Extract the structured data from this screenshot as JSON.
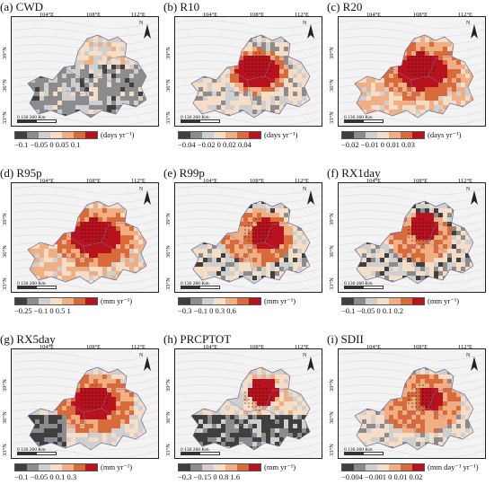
{
  "lon_labels": [
    "104°E",
    "108°E",
    "112°E"
  ],
  "lat_labels": [
    "39°N",
    "36°N",
    "33°N"
  ],
  "scale_label": "0   130   260 Km",
  "north_label": "N",
  "colors": {
    "c0": "#3f3f3f",
    "c1": "#8c8c8c",
    "c2": "#cfcfcf",
    "c3": "#f6ddc6",
    "c4": "#efae84",
    "c5": "#d96a3a",
    "c6": "#b8121f",
    "land": "#eeeeee"
  },
  "panels": [
    {
      "title": "(a) CWD",
      "unit": "(days yr⁻¹)",
      "ticks": "−0.1 −0.05  0  0.05  0.1",
      "pattern": "gray_north_light",
      "nbins": 6
    },
    {
      "title": "(b) R10",
      "unit": "(days yr⁻¹)",
      "ticks": "−0.04 −0.02  0  0.02  0.04",
      "pattern": "red_center",
      "nbins": 6
    },
    {
      "title": "(c) R20",
      "unit": "(days yr⁻¹)",
      "ticks": "−0.02 −0.01  0  0.01  0.03",
      "pattern": "red_center_orange",
      "nbins": 6
    },
    {
      "title": "(d) R95p",
      "unit": "(mm yr⁻¹)",
      "ticks": "−0.25 −0.1  0  0.5   1",
      "pattern": "red_center_orange",
      "nbins": 6
    },
    {
      "title": "(e) R99p",
      "unit": "(mm yr⁻¹)",
      "ticks": "−0.3 −0.1  0  0.3  0.6",
      "pattern": "red_east_mixed",
      "nbins": 6
    },
    {
      "title": "(f) RX1day",
      "unit": "(mm yr⁻¹)",
      "ticks": "−0.1 −0.05  0  0.1  0.2",
      "pattern": "red_north_mixed",
      "nbins": 6
    },
    {
      "title": "(g) RX5day",
      "unit": "(mm yr⁻¹)",
      "ticks": "−0.1 −0.05  0  0.1   0.3",
      "pattern": "red_center_gray_sw",
      "nbins": 6
    },
    {
      "title": "(h) PRCPTOT",
      "unit": "(mm yr⁻¹)",
      "ticks": "−0.3 −0.15  0  0.8  1.6",
      "pattern": "red_north_dark_south",
      "nbins": 6
    },
    {
      "title": "(i) SDII",
      "unit": "(mm day⁻¹ yr⁻¹)",
      "ticks": "−0.004 −0.001 0  0.01 0.02",
      "pattern": "red_center_orange_mixed",
      "nbins": 6
    }
  ]
}
